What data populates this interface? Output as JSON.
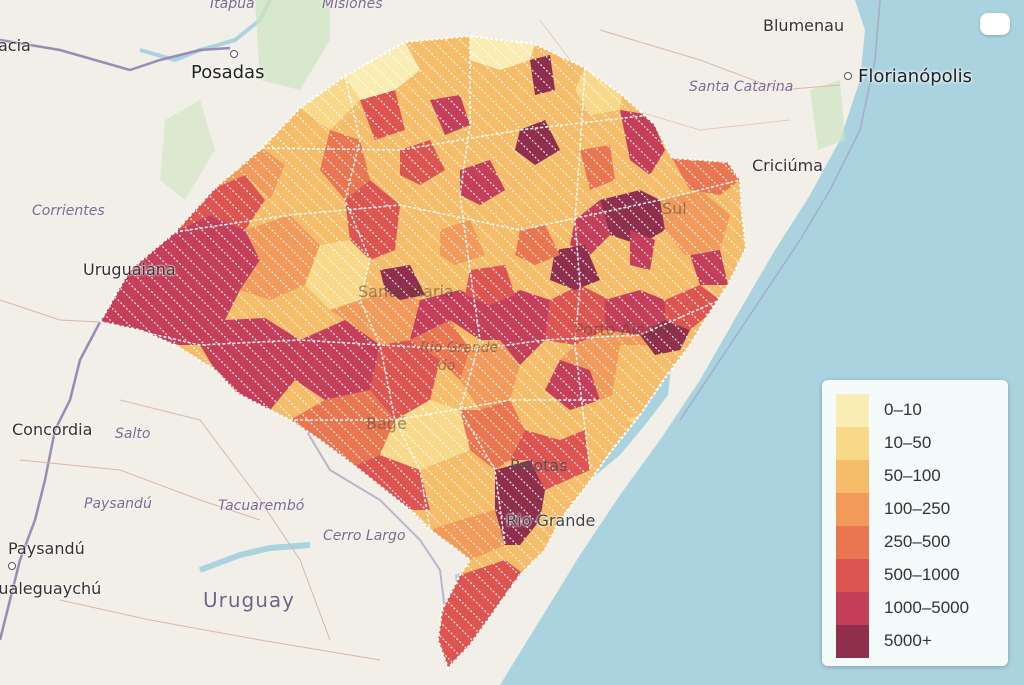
{
  "map": {
    "cities": [
      {
        "name": "Blumenau"
      },
      {
        "name": "Florianópolis"
      },
      {
        "name": "Posadas"
      },
      {
        "name": "Criciúma"
      },
      {
        "name": "Uruguaiana"
      },
      {
        "name": "Concordia"
      },
      {
        "name": "Paysandú"
      },
      {
        "name": "Gualeguaychú"
      },
      {
        "name": "Rio Grande"
      },
      {
        "name": "Pelotas"
      },
      {
        "name": "Santa Maria"
      },
      {
        "name": "Porto Alegre"
      },
      {
        "name": "Sul"
      },
      {
        "name": "do"
      }
    ],
    "regions": [
      {
        "name": "Itapúa"
      },
      {
        "name": "Misiones"
      },
      {
        "name": "Santa Catarina"
      },
      {
        "name": "Corrientes"
      },
      {
        "name": "Salto"
      },
      {
        "name": "Paysandú"
      },
      {
        "name": "Tacuarembó"
      },
      {
        "name": "Cerro Largo"
      },
      {
        "name": "Rio Grande"
      },
      {
        "name": "Bagé"
      }
    ],
    "countries": [
      {
        "name": "Uruguay"
      }
    ],
    "partial_labels": [
      {
        "text": "acia"
      }
    ]
  },
  "legend": {
    "items": [
      {
        "label": "0–10",
        "color": "#faedb3"
      },
      {
        "label": "10–50",
        "color": "#f8d989"
      },
      {
        "label": "50–100",
        "color": "#f5bd6a"
      },
      {
        "label": "100–250",
        "color": "#f19a5a"
      },
      {
        "label": "250–500",
        "color": "#ea7551"
      },
      {
        "label": "500–1000",
        "color": "#dd5450"
      },
      {
        "label": "1000–5000",
        "color": "#c53e5a"
      },
      {
        "label": "5000+",
        "color": "#8f2f4d"
      }
    ]
  },
  "colors": {
    "land": "#f2efe9",
    "water": "#aad3df",
    "border": "#9b8ab6"
  }
}
